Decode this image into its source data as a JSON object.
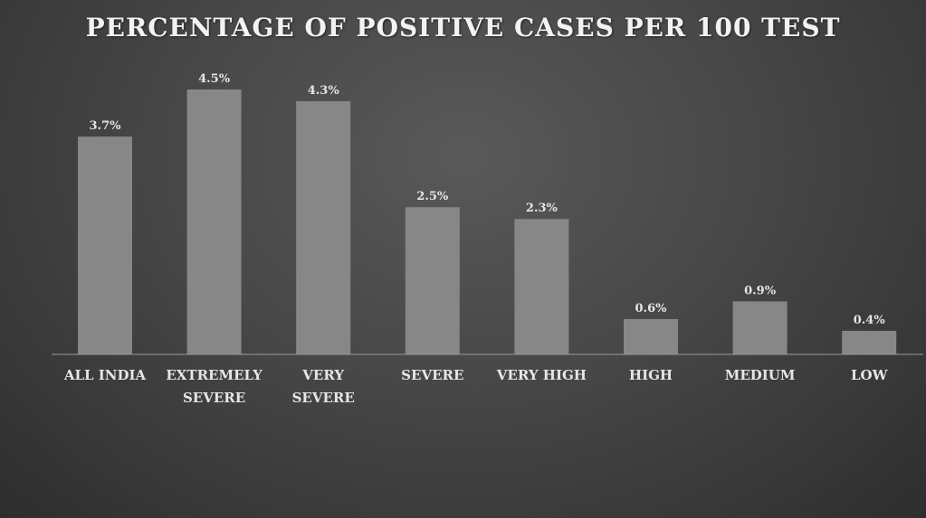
{
  "chart_data": {
    "type": "bar",
    "title": "PERCENTAGE OF POSITIVE CASES PER 100 TEST",
    "categories": [
      [
        "ALL INDIA"
      ],
      [
        "EXTREMELY",
        "SEVERE"
      ],
      [
        "VERY",
        "SEVERE"
      ],
      [
        "SEVERE"
      ],
      [
        "VERY HIGH"
      ],
      [
        "HIGH"
      ],
      [
        "MEDIUM"
      ],
      [
        "LOW"
      ]
    ],
    "values": [
      3.7,
      4.5,
      4.3,
      2.5,
      2.3,
      0.6,
      0.9,
      0.4
    ],
    "data_labels": [
      "3.7%",
      "4.5%",
      "4.3%",
      "2.5%",
      "2.3%",
      "0.6%",
      "0.9%",
      "0.4%"
    ],
    "ylim": [
      0,
      4.5
    ],
    "grid": false,
    "colors": {
      "bar": "#878787",
      "text": "#e6e6e6",
      "axis": "#9a9a9a"
    }
  }
}
